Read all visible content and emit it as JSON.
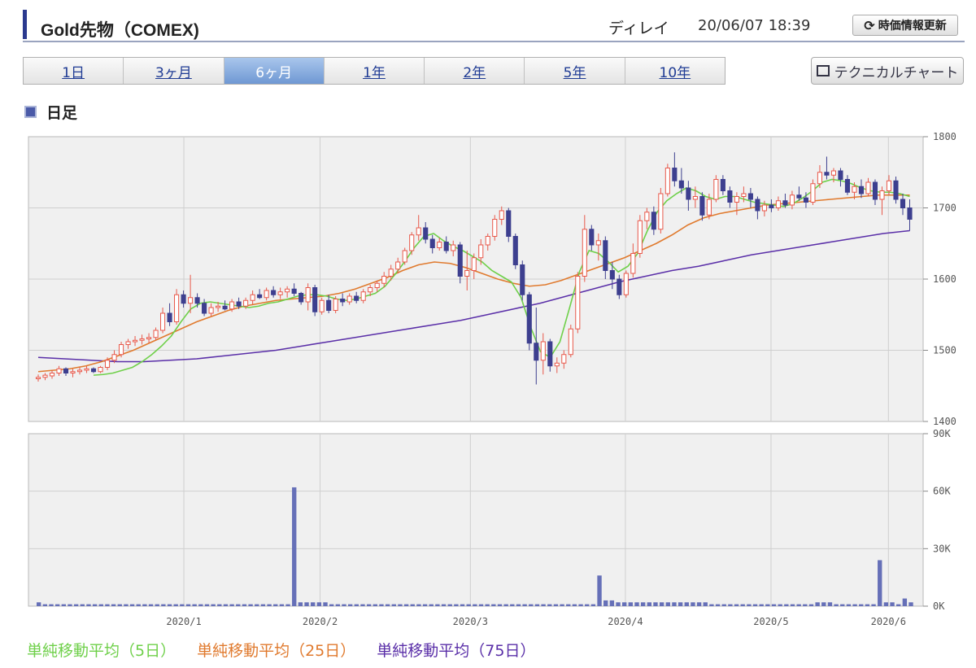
{
  "header": {
    "title": "Gold先物（COMEX)",
    "delay": "ディレイ",
    "timestamp": "20/06/07 18:39",
    "refresh_label": "時価情報更新"
  },
  "tabs": [
    {
      "label": "1日",
      "active": false
    },
    {
      "label": "3ヶ月",
      "active": false
    },
    {
      "label": "6ヶ月",
      "active": true
    },
    {
      "label": "1年",
      "active": false
    },
    {
      "label": "2年",
      "active": false
    },
    {
      "label": "5年",
      "active": false
    },
    {
      "label": "10年",
      "active": false
    }
  ],
  "technical_button": "テクニカルチャート",
  "section_label": "日足",
  "legend": {
    "ma5": "単純移動平均（5日）",
    "ma25": "単純移動平均（25日）",
    "ma75": "単純移動平均（75日）"
  },
  "colors": {
    "up": "#e8584a",
    "down": "#3d3f8f",
    "ma5": "#6fd04a",
    "ma25": "#e07a2e",
    "ma75": "#5a2fa8",
    "volume": "#6670b8",
    "accent": "#2b3a8f"
  },
  "chart_data": {
    "type": "candlestick",
    "price_axis": {
      "ylim": [
        1400,
        1800
      ],
      "ticks": [
        "1800",
        "1700",
        "1600",
        "1500",
        "1400"
      ]
    },
    "volume_axis": {
      "ylim": [
        0,
        90000
      ],
      "ticks": [
        "90K",
        "60K",
        "30K",
        "0K"
      ]
    },
    "x_labels": [
      "2020/1",
      "2020/2",
      "2020/3",
      "2020/4",
      "2020/5",
      "2020/6"
    ],
    "x_label_positions": [
      31,
      60,
      92,
      125,
      156,
      181
    ],
    "candles": [
      [
        1460,
        1466,
        1456,
        1462
      ],
      [
        1462,
        1468,
        1458,
        1465
      ],
      [
        1464,
        1472,
        1460,
        1468
      ],
      [
        1468,
        1478,
        1464,
        1474
      ],
      [
        1474,
        1476,
        1464,
        1468
      ],
      [
        1468,
        1474,
        1462,
        1470
      ],
      [
        1470,
        1476,
        1466,
        1472
      ],
      [
        1472,
        1478,
        1468,
        1474
      ],
      [
        1474,
        1476,
        1468,
        1470
      ],
      [
        1470,
        1478,
        1468,
        1476
      ],
      [
        1476,
        1490,
        1472,
        1486
      ],
      [
        1486,
        1500,
        1482,
        1494
      ],
      [
        1494,
        1512,
        1490,
        1508
      ],
      [
        1508,
        1516,
        1502,
        1512
      ],
      [
        1512,
        1520,
        1506,
        1514
      ],
      [
        1514,
        1522,
        1508,
        1516
      ],
      [
        1516,
        1524,
        1510,
        1518
      ],
      [
        1518,
        1532,
        1514,
        1528
      ],
      [
        1528,
        1560,
        1524,
        1552
      ],
      [
        1552,
        1566,
        1534,
        1540
      ],
      [
        1540,
        1586,
        1536,
        1578
      ],
      [
        1578,
        1584,
        1560,
        1566
      ],
      [
        1566,
        1606,
        1552,
        1574
      ],
      [
        1574,
        1580,
        1560,
        1566
      ],
      [
        1566,
        1572,
        1548,
        1552
      ],
      [
        1552,
        1566,
        1548,
        1560
      ],
      [
        1560,
        1568,
        1554,
        1562
      ],
      [
        1562,
        1570,
        1556,
        1558
      ],
      [
        1558,
        1572,
        1554,
        1568
      ],
      [
        1568,
        1574,
        1558,
        1562
      ],
      [
        1562,
        1574,
        1558,
        1570
      ],
      [
        1570,
        1584,
        1564,
        1578
      ],
      [
        1578,
        1586,
        1572,
        1574
      ],
      [
        1574,
        1588,
        1570,
        1584
      ],
      [
        1584,
        1590,
        1574,
        1578
      ],
      [
        1578,
        1588,
        1572,
        1582
      ],
      [
        1582,
        1590,
        1574,
        1586
      ],
      [
        1586,
        1594,
        1576,
        1580
      ],
      [
        1580,
        1582,
        1564,
        1568
      ],
      [
        1568,
        1594,
        1556,
        1588
      ],
      [
        1588,
        1592,
        1548,
        1554
      ],
      [
        1554,
        1574,
        1550,
        1570
      ],
      [
        1570,
        1578,
        1552,
        1556
      ],
      [
        1556,
        1576,
        1552,
        1572
      ],
      [
        1572,
        1580,
        1562,
        1568
      ],
      [
        1568,
        1580,
        1564,
        1576
      ],
      [
        1576,
        1582,
        1566,
        1570
      ],
      [
        1570,
        1586,
        1566,
        1582
      ],
      [
        1582,
        1592,
        1576,
        1588
      ],
      [
        1588,
        1598,
        1582,
        1594
      ],
      [
        1594,
        1610,
        1588,
        1604
      ],
      [
        1604,
        1620,
        1598,
        1614
      ],
      [
        1614,
        1630,
        1608,
        1624
      ],
      [
        1624,
        1644,
        1620,
        1640
      ],
      [
        1640,
        1666,
        1634,
        1662
      ],
      [
        1662,
        1690,
        1654,
        1672
      ],
      [
        1672,
        1680,
        1650,
        1656
      ],
      [
        1656,
        1662,
        1636,
        1644
      ],
      [
        1644,
        1658,
        1640,
        1652
      ],
      [
        1652,
        1660,
        1636,
        1640
      ],
      [
        1640,
        1654,
        1632,
        1648
      ],
      [
        1648,
        1652,
        1594,
        1604
      ],
      [
        1604,
        1640,
        1584,
        1612
      ],
      [
        1612,
        1636,
        1600,
        1630
      ],
      [
        1630,
        1656,
        1620,
        1648
      ],
      [
        1648,
        1664,
        1640,
        1660
      ],
      [
        1660,
        1690,
        1654,
        1684
      ],
      [
        1684,
        1702,
        1676,
        1696
      ],
      [
        1696,
        1700,
        1652,
        1660
      ],
      [
        1660,
        1664,
        1614,
        1620
      ],
      [
        1620,
        1626,
        1570,
        1578
      ],
      [
        1578,
        1582,
        1500,
        1510
      ],
      [
        1510,
        1560,
        1452,
        1486
      ],
      [
        1486,
        1524,
        1466,
        1512
      ],
      [
        1512,
        1516,
        1470,
        1478
      ],
      [
        1478,
        1490,
        1468,
        1482
      ],
      [
        1482,
        1500,
        1474,
        1494
      ],
      [
        1494,
        1536,
        1490,
        1530
      ],
      [
        1530,
        1610,
        1524,
        1604
      ],
      [
        1604,
        1690,
        1596,
        1670
      ],
      [
        1670,
        1676,
        1640,
        1648
      ],
      [
        1648,
        1664,
        1626,
        1654
      ],
      [
        1654,
        1660,
        1600,
        1612
      ],
      [
        1612,
        1624,
        1586,
        1600
      ],
      [
        1600,
        1606,
        1572,
        1578
      ],
      [
        1578,
        1612,
        1574,
        1608
      ],
      [
        1608,
        1650,
        1602,
        1636
      ],
      [
        1636,
        1690,
        1630,
        1682
      ],
      [
        1682,
        1700,
        1670,
        1694
      ],
      [
        1694,
        1702,
        1662,
        1670
      ],
      [
        1670,
        1728,
        1664,
        1720
      ],
      [
        1720,
        1762,
        1716,
        1756
      ],
      [
        1756,
        1778,
        1730,
        1738
      ],
      [
        1738,
        1756,
        1720,
        1728
      ],
      [
        1728,
        1738,
        1696,
        1712
      ],
      [
        1712,
        1730,
        1700,
        1716
      ],
      [
        1716,
        1722,
        1682,
        1690
      ],
      [
        1690,
        1720,
        1684,
        1712
      ],
      [
        1712,
        1746,
        1708,
        1740
      ],
      [
        1740,
        1746,
        1718,
        1724
      ],
      [
        1724,
        1730,
        1700,
        1708
      ],
      [
        1708,
        1722,
        1690,
        1716
      ],
      [
        1716,
        1730,
        1708,
        1720
      ],
      [
        1720,
        1728,
        1700,
        1712
      ],
      [
        1712,
        1716,
        1684,
        1696
      ],
      [
        1696,
        1710,
        1688,
        1704
      ],
      [
        1704,
        1712,
        1694,
        1700
      ],
      [
        1700,
        1716,
        1696,
        1710
      ],
      [
        1710,
        1720,
        1700,
        1704
      ],
      [
        1704,
        1724,
        1698,
        1718
      ],
      [
        1718,
        1730,
        1710,
        1714
      ],
      [
        1714,
        1722,
        1700,
        1708
      ],
      [
        1708,
        1740,
        1704,
        1734
      ],
      [
        1734,
        1760,
        1728,
        1750
      ],
      [
        1750,
        1772,
        1740,
        1746
      ],
      [
        1746,
        1756,
        1736,
        1752
      ],
      [
        1752,
        1756,
        1730,
        1740
      ],
      [
        1740,
        1746,
        1718,
        1722
      ],
      [
        1722,
        1736,
        1712,
        1730
      ],
      [
        1730,
        1740,
        1714,
        1720
      ],
      [
        1720,
        1742,
        1716,
        1736
      ],
      [
        1736,
        1740,
        1704,
        1712
      ],
      [
        1712,
        1730,
        1690,
        1724
      ],
      [
        1724,
        1746,
        1718,
        1738
      ],
      [
        1738,
        1744,
        1706,
        1712
      ],
      [
        1712,
        1720,
        1690,
        1700
      ],
      [
        1700,
        1712,
        1668,
        1684
      ]
    ],
    "ma5": [
      1465,
      1466,
      1468,
      1472,
      1476,
      1484,
      1494,
      1506,
      1520,
      1540,
      1558,
      1566,
      1568,
      1566,
      1564,
      1562,
      1560,
      1562,
      1566,
      1568,
      1572,
      1576,
      1578,
      1578,
      1576,
      1572,
      1570,
      1572,
      1576,
      1580,
      1590,
      1606,
      1624,
      1644,
      1660,
      1664,
      1654,
      1646,
      1640,
      1632,
      1624,
      1612,
      1604,
      1596,
      1574,
      1532,
      1498,
      1490,
      1512,
      1560,
      1610,
      1640,
      1636,
      1624,
      1610,
      1618,
      1636,
      1668,
      1694,
      1710,
      1720,
      1728,
      1724,
      1716,
      1712,
      1716,
      1716,
      1712,
      1708,
      1706,
      1704,
      1702,
      1706,
      1714,
      1724,
      1736,
      1740,
      1738,
      1734,
      1728,
      1724,
      1722,
      1722,
      1720,
      1716
    ],
    "ma25": [
      1470,
      1472,
      1474,
      1478,
      1484,
      1492,
      1500,
      1510,
      1520,
      1530,
      1540,
      1548,
      1556,
      1562,
      1566,
      1570,
      1572,
      1574,
      1576,
      1580,
      1586,
      1594,
      1602,
      1612,
      1620,
      1624,
      1622,
      1616,
      1608,
      1600,
      1594,
      1590,
      1592,
      1598,
      1606,
      1614,
      1622,
      1630,
      1640,
      1650,
      1662,
      1676,
      1686,
      1692,
      1696,
      1700,
      1704,
      1706,
      1708,
      1710,
      1712,
      1714,
      1716,
      1718,
      1718,
      1718
    ],
    "ma75": [
      1490,
      1488,
      1486,
      1484,
      1484,
      1486,
      1488,
      1492,
      1496,
      1500,
      1506,
      1512,
      1518,
      1524,
      1530,
      1536,
      1542,
      1550,
      1558,
      1566,
      1576,
      1586,
      1596,
      1604,
      1612,
      1618,
      1626,
      1634,
      1640,
      1646,
      1652,
      1658,
      1664,
      1668
    ],
    "volume": [
      2,
      1,
      1,
      1,
      1,
      1,
      1,
      1,
      1,
      1,
      1,
      1,
      1,
      1,
      1,
      1,
      1,
      1,
      1,
      1,
      1,
      1,
      1,
      1,
      1,
      1,
      1,
      1,
      1,
      1,
      1,
      1,
      1,
      1,
      1,
      1,
      1,
      1,
      1,
      1,
      1,
      62,
      2,
      2,
      2,
      2,
      2,
      1,
      1,
      1,
      1,
      1,
      1,
      1,
      1,
      1,
      1,
      1,
      1,
      1,
      1,
      1,
      1,
      1,
      1,
      1,
      1,
      1,
      1,
      1,
      1,
      1,
      1,
      1,
      1,
      1,
      1,
      1,
      1,
      1,
      1,
      1,
      1,
      1,
      1,
      1,
      1,
      1,
      1,
      1,
      16,
      3,
      3,
      2,
      2,
      2,
      2,
      2,
      2,
      2,
      2,
      2,
      2,
      2,
      2,
      2,
      2,
      2,
      1,
      1,
      1,
      1,
      1,
      1,
      1,
      1,
      1,
      1,
      1,
      1,
      1,
      1,
      1,
      1,
      1,
      2,
      2,
      2,
      1,
      1,
      1,
      1,
      1,
      1,
      1,
      24,
      2,
      2,
      1,
      4,
      2
    ]
  }
}
